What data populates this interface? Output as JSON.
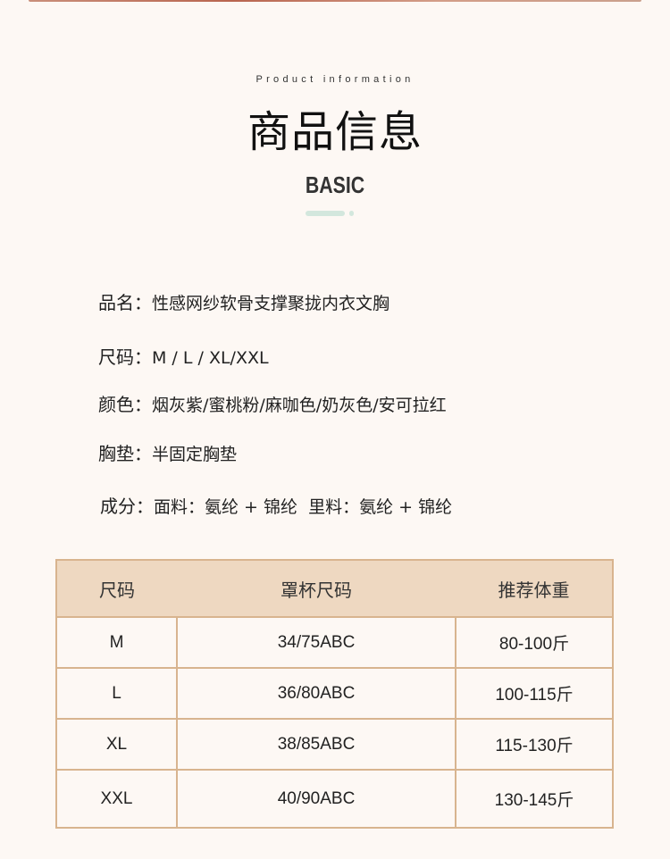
{
  "header": {
    "subtitle": "Product information",
    "title": "商品信息",
    "badge": "BASIC",
    "accent_color": "#d3e7dd"
  },
  "specs": [
    {
      "label": "品名：",
      "value": "性感网纱软骨支撑聚拢内衣文胸"
    },
    {
      "label": "尺码：",
      "value": "M / L / XL/XXL"
    },
    {
      "label": "颜色：",
      "value": "烟灰紫/蜜桃粉/麻咖色/奶灰色/安可拉红"
    },
    {
      "label": "胸垫：",
      "value": "半固定胸垫"
    },
    {
      "label": "成分：",
      "value": "面料：氨纶 + 锦纶  里料：氨纶 + 锦纶"
    }
  ],
  "table": {
    "headers": [
      "尺码",
      "罩杯尺码",
      "推荐体重"
    ],
    "rows": [
      [
        "M",
        "34/75ABC",
        "80-100斤"
      ],
      [
        "L",
        "36/80ABC",
        "100-115斤"
      ],
      [
        "XL",
        "38/85ABC",
        "115-130斤"
      ],
      [
        "XXL",
        "40/90ABC",
        "130-145斤"
      ]
    ],
    "header_color": "#eed8c1",
    "border_color": "#d8b48f"
  }
}
